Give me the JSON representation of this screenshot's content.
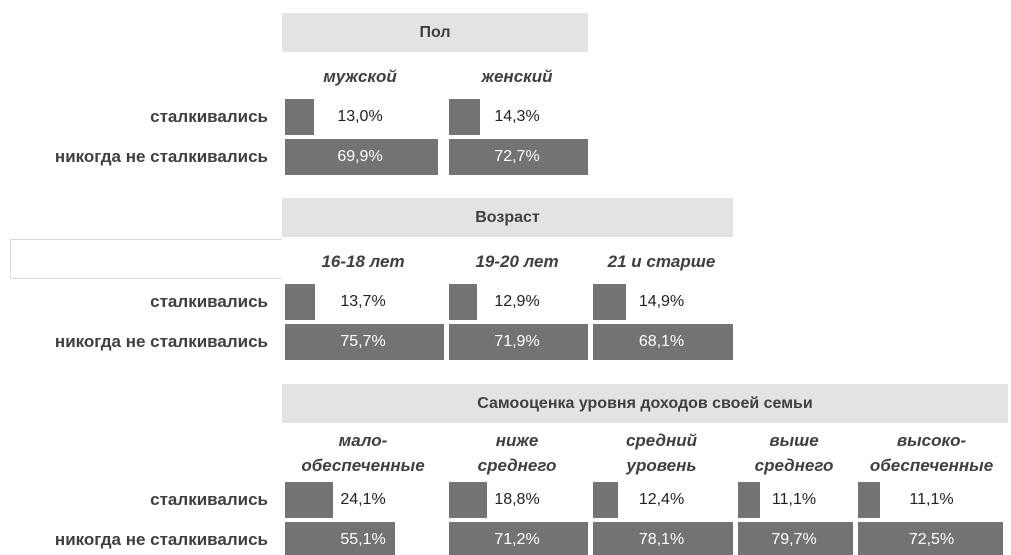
{
  "chart_data": [
    {
      "type": "bar",
      "title": "Пол",
      "categories": [
        "мужской",
        "женский"
      ],
      "series": [
        {
          "name": "сталкивались",
          "color": "#737373",
          "values": [
            13.0,
            14.3
          ],
          "value_labels": [
            "13,0%",
            "14,3%"
          ]
        },
        {
          "name": "никогда не сталкивались",
          "color": "#737373",
          "values": [
            69.9,
            72.7
          ],
          "value_labels": [
            "69,9%",
            "72,7%"
          ]
        }
      ]
    },
    {
      "type": "bar",
      "title": "Возраст",
      "categories": [
        "16-18 лет",
        "19-20 лет",
        "21 и старше"
      ],
      "series": [
        {
          "name": "сталкивались",
          "color": "#737373",
          "values": [
            13.7,
            12.9,
            14.9
          ],
          "value_labels": [
            "13,7%",
            "12,9%",
            "14,9%"
          ]
        },
        {
          "name": "никогда не сталкивались",
          "color": "#737373",
          "values": [
            75.7,
            71.9,
            68.1
          ],
          "value_labels": [
            "75,7%",
            "71,9%",
            "68,1%"
          ]
        }
      ]
    },
    {
      "type": "bar",
      "title": "Самооценка уровня доходов своей семьи",
      "categories": [
        "мало-\nобеспеченные",
        "ниже\nсреднего",
        "средний\nуровень",
        "выше\nсреднего",
        "высоко-\nобеспеченные"
      ],
      "series": [
        {
          "name": "сталкивались",
          "color": "#737373",
          "values": [
            24.1,
            18.8,
            12.4,
            11.1,
            11.1
          ],
          "value_labels": [
            "24,1%",
            "18,8%",
            "12,4%",
            "11,1%",
            "11,1%"
          ]
        },
        {
          "name": "никогда не сталкивались",
          "color": "#737373",
          "values": [
            55.1,
            71.2,
            78.1,
            79.7,
            72.5
          ],
          "value_labels": [
            "55,1%",
            "71,2%",
            "78,1%",
            "79,7%",
            "72,5%"
          ]
        }
      ]
    }
  ]
}
